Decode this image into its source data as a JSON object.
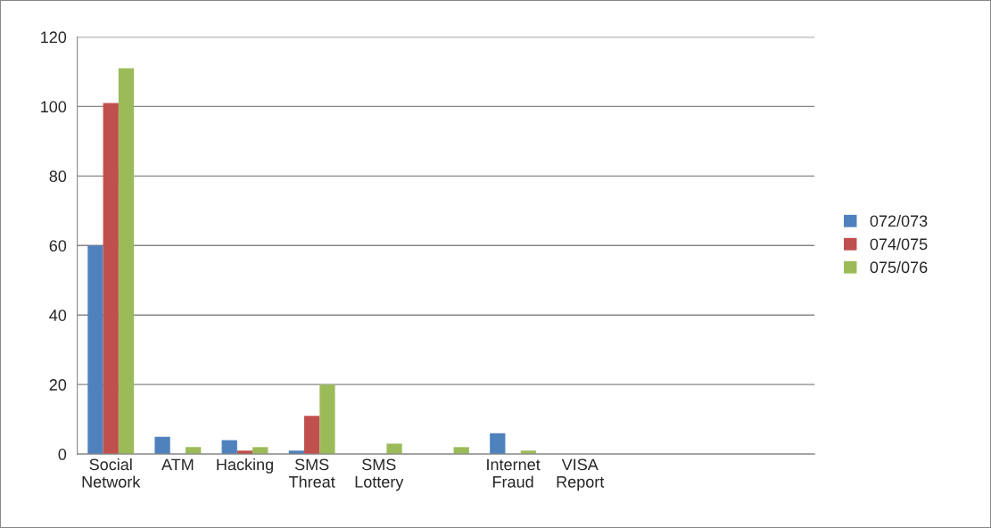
{
  "chart_data": {
    "type": "bar",
    "categories": [
      "Social Network",
      "ATM",
      "Hacking",
      "SMS Threat",
      "SMS Lottery",
      null,
      "Internet Fraud",
      "VISA Report",
      null,
      null,
      null
    ],
    "series": [
      {
        "name": "072/073",
        "color": "#4f81bd",
        "values": [
          60,
          5,
          4,
          1,
          0,
          0,
          6,
          0,
          null,
          null,
          null
        ]
      },
      {
        "name": "074/075",
        "color": "#c0504d",
        "values": [
          101,
          0,
          1,
          11,
          0,
          0,
          0,
          0,
          null,
          null,
          null
        ]
      },
      {
        "name": "075/076",
        "color": "#9bbb59",
        "values": [
          111,
          2,
          2,
          20,
          3,
          2,
          1,
          0,
          null,
          null,
          null
        ]
      }
    ],
    "ylim": [
      0,
      120
    ],
    "yticks": [
      0,
      20,
      40,
      60,
      80,
      100,
      120
    ],
    "grid": "y",
    "legend": "right"
  }
}
